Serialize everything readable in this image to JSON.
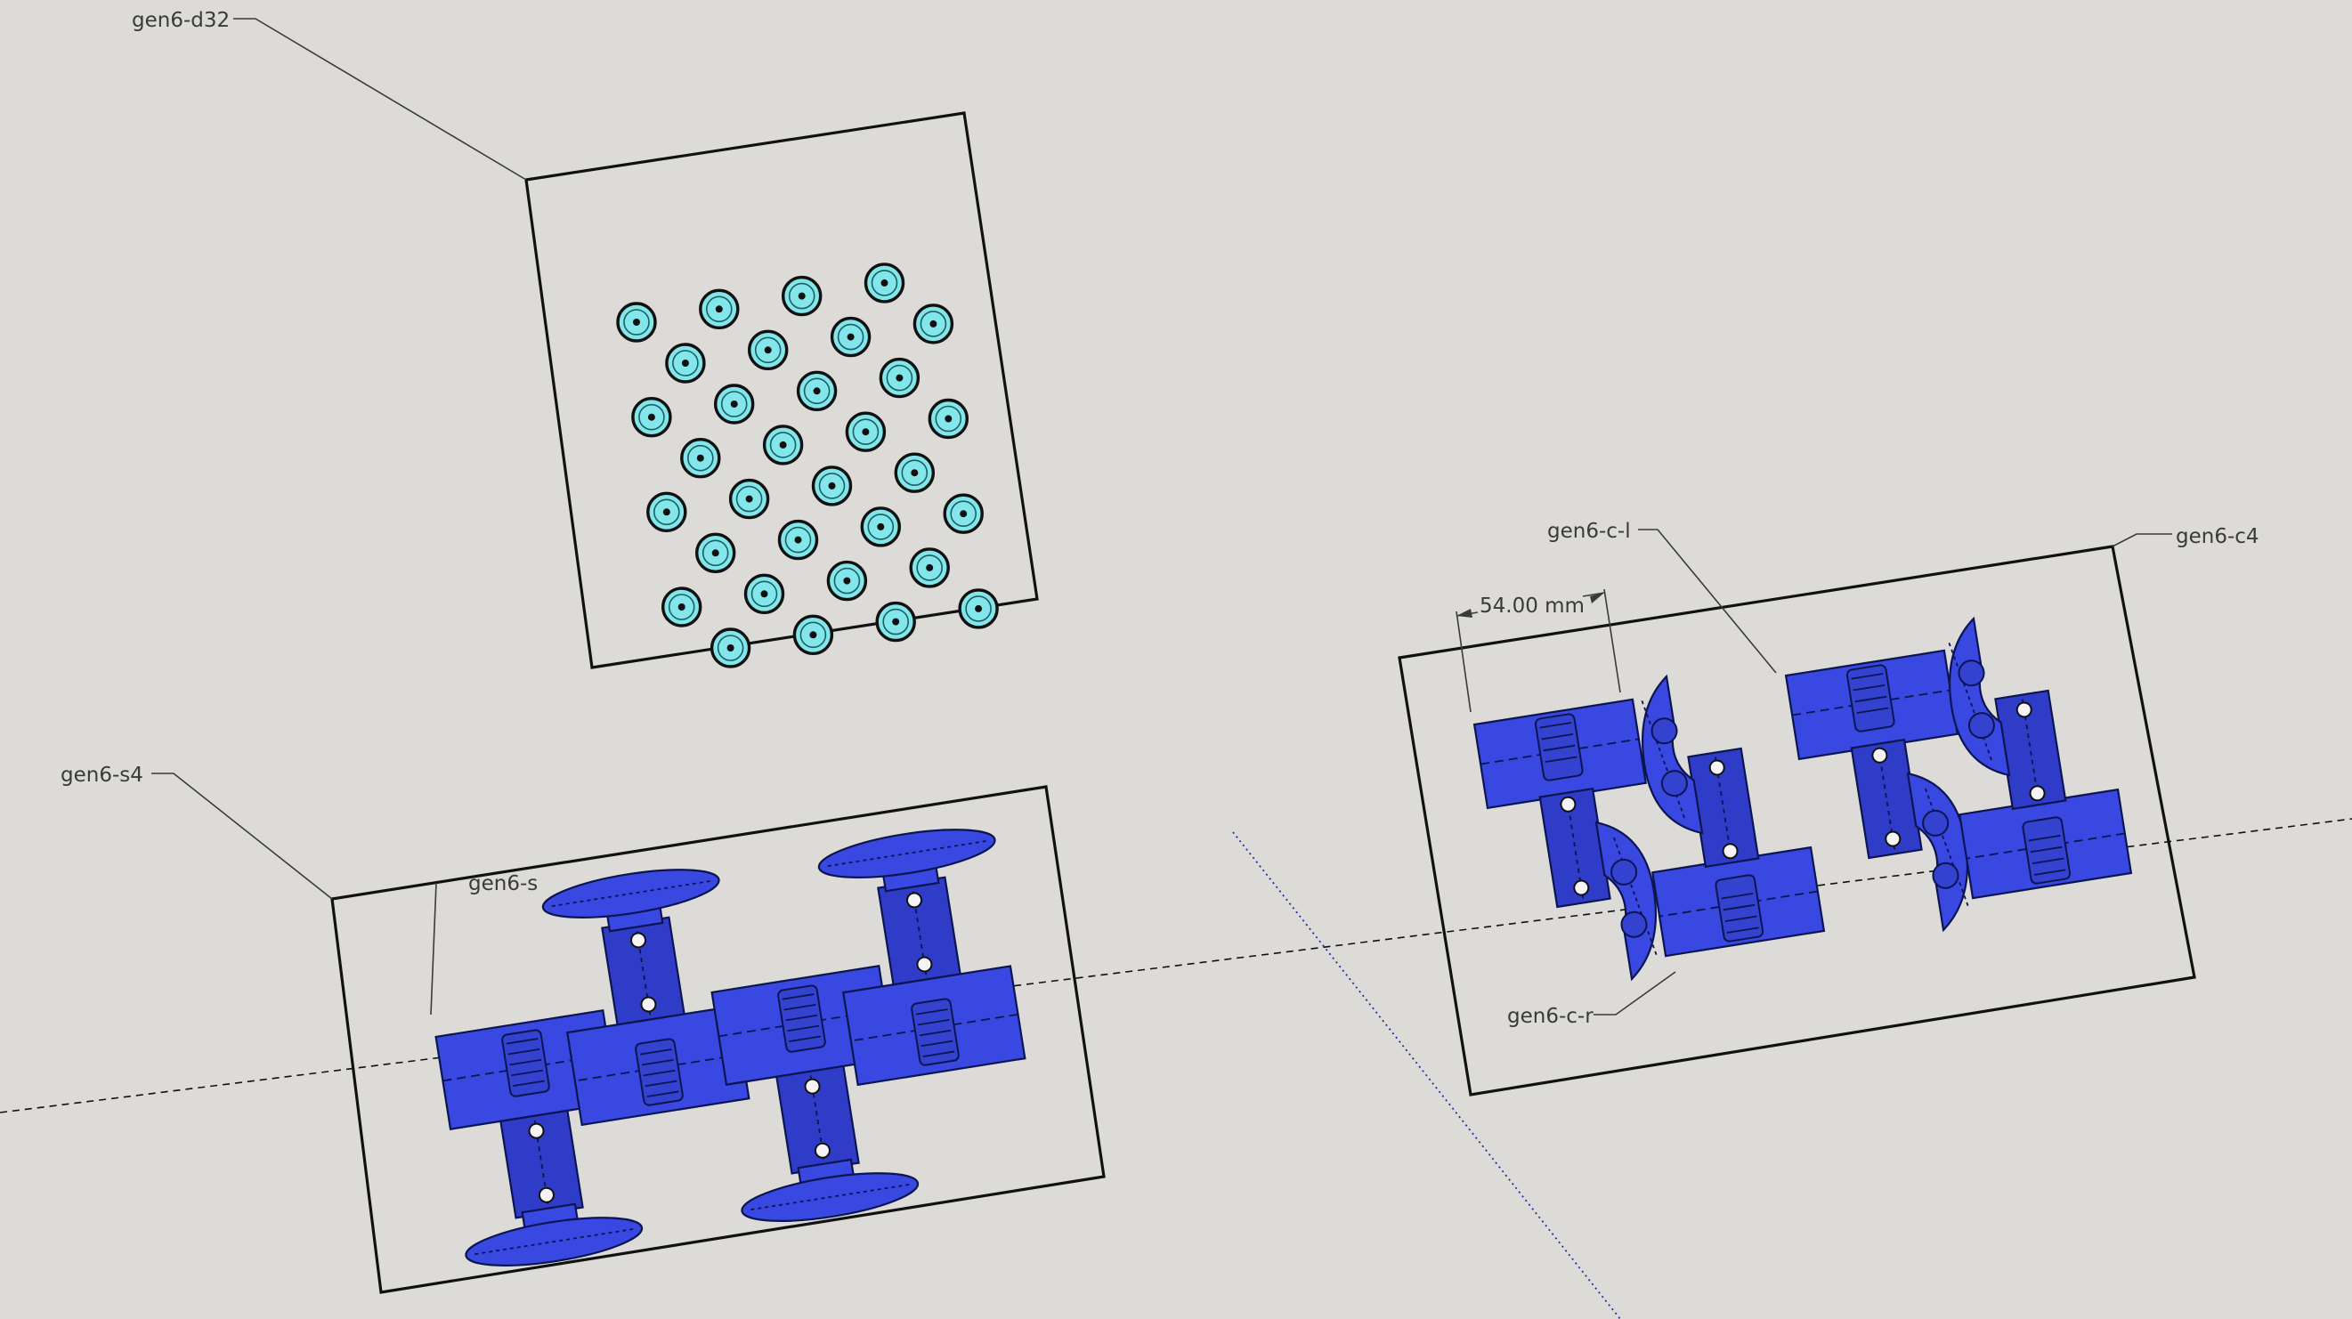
{
  "app": "SketchUp model viewport",
  "colors": {
    "background": "#dcdbd8",
    "part_blue": "#3848e0",
    "disc_cyan": "#83e6ea",
    "outline": "#111111"
  },
  "labels": {
    "d32": "gen6-d32",
    "s4": "gen6-s4",
    "s": "gen6-s",
    "c4": "gen6-c4",
    "c_l": "gen6-c-l",
    "c_r": "gen6-c-r"
  },
  "dimension": {
    "value": "54.00 mm"
  }
}
